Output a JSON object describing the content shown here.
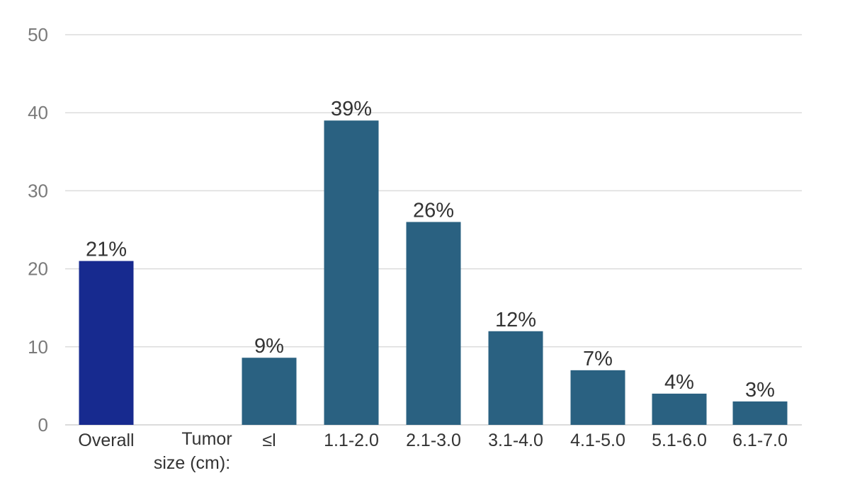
{
  "chart_data": {
    "type": "bar",
    "title": "",
    "xlabel": "",
    "ylabel": "",
    "ylim": [
      0,
      50
    ],
    "yticks": [
      0,
      10,
      20,
      30,
      40,
      50
    ],
    "grid": true,
    "group_label": [
      "Tumor",
      "size (cm):"
    ],
    "categories": [
      "Overall",
      "≤l",
      "1.1-2.0",
      "2.1-3.0",
      "3.1-4.0",
      "4.1-5.0",
      "5.1-6.0",
      "6.1-7.0"
    ],
    "values": [
      21,
      8.6,
      39,
      26,
      12,
      7,
      4,
      3
    ],
    "data_labels": [
      "21%",
      "9%",
      "39%",
      "26%",
      "12%",
      "7%",
      "4%",
      "3%"
    ],
    "colors": {
      "overall": "#172a8f",
      "tumor_size": "#2a6181"
    }
  }
}
